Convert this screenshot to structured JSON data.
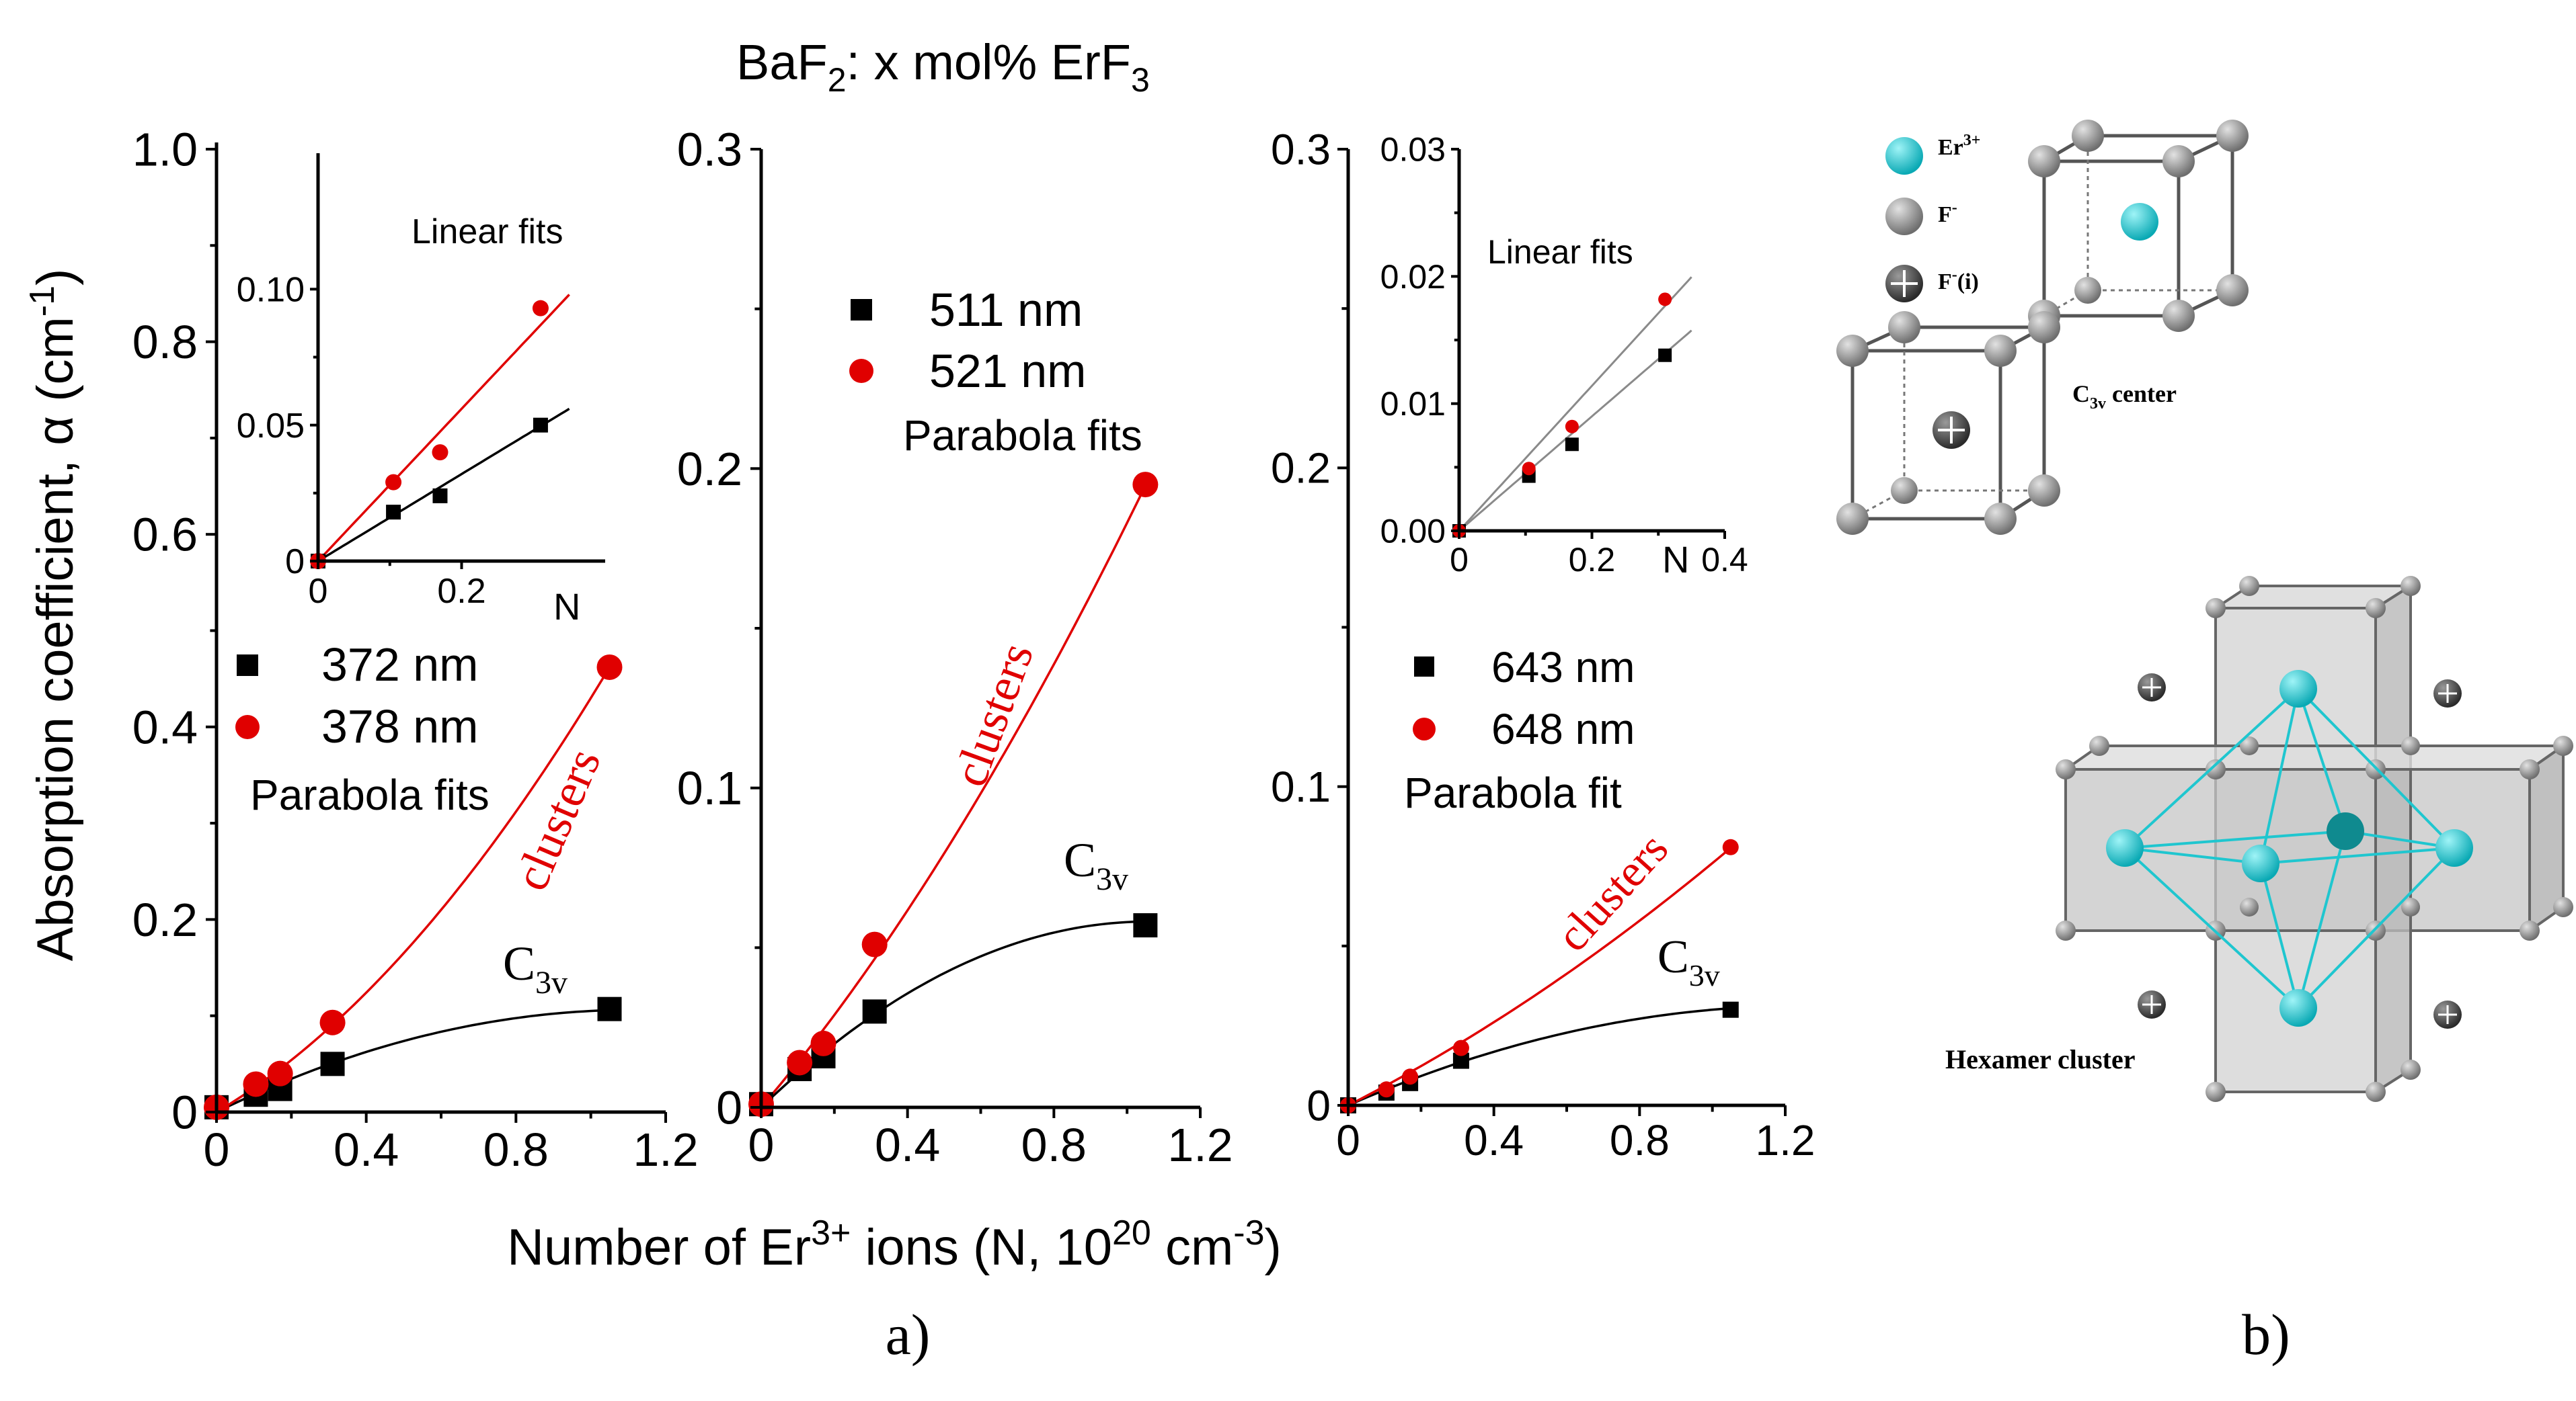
{
  "figure_title": {
    "main": "BaF",
    "sub1": "2",
    "mid": ": x mol% ErF",
    "sub2": "3"
  },
  "y_axis_label": {
    "main": "Absorption coefficient, α (cm",
    "sup": "-1",
    "end": ")"
  },
  "x_axis_label": {
    "p1": "Number of Er",
    "sup1": "3+",
    "p2": " ions (N, 10",
    "sup2": "20",
    "p3": " cm",
    "sup3": "-3",
    "p4": ")"
  },
  "panel_labels": {
    "a": "a)",
    "b": "b)"
  },
  "chart_data": [
    {
      "type": "scatter",
      "panel": "left",
      "xlim": [
        0,
        1.2
      ],
      "ylim": [
        0,
        1.0
      ],
      "x_ticks": [
        "0",
        "0.4",
        "0.8",
        "1.2"
      ],
      "y_ticks": [
        "0",
        "0.2",
        "0.4",
        "0.6",
        "0.8",
        "1.0"
      ],
      "series": [
        {
          "name": "372 nm",
          "color": "#000000",
          "marker": "square",
          "x": [
            0.0,
            0.105,
            0.17,
            0.31,
            1.05
          ],
          "y": [
            0.005,
            0.018,
            0.024,
            0.05,
            0.107
          ]
        },
        {
          "name": "378 nm",
          "color": "#e00000",
          "marker": "circle",
          "x": [
            0.0,
            0.105,
            0.17,
            0.31,
            1.05
          ],
          "y": [
            0.005,
            0.029,
            0.04,
            0.093,
            0.462
          ]
        }
      ],
      "fits": [
        {
          "series": "372 nm",
          "kind": "parabola",
          "coef": [
            0,
            0.19,
            -0.085
          ],
          "x_range": [
            0,
            1.05
          ]
        },
        {
          "series": "378 nm",
          "kind": "parabola",
          "coef": [
            0,
            0.23,
            0.2
          ],
          "x_range": [
            0,
            1.05
          ]
        }
      ],
      "legend_fit_label": "Parabola fits",
      "annotations": [
        {
          "text": "clusters",
          "color": "#e00000"
        },
        {
          "text": "C",
          "sub": "3v"
        }
      ],
      "inset": {
        "title": "Linear fits",
        "xlabel": "N",
        "xlim": [
          0,
          0.4
        ],
        "ylim": [
          0,
          0.15
        ],
        "x_ticks": [
          "0",
          "0.2"
        ],
        "y_ticks": [
          "0",
          "0.05",
          "0.10"
        ],
        "series": [
          {
            "name": "372 nm",
            "color": "#000000",
            "marker": "square",
            "x": [
              0.0,
              0.105,
              0.17,
              0.31
            ],
            "y": [
              0.0,
              0.018,
              0.024,
              0.05
            ]
          },
          {
            "name": "378 nm",
            "color": "#e00000",
            "marker": "circle",
            "x": [
              0.0,
              0.105,
              0.17,
              0.31
            ],
            "y": [
              0.0,
              0.029,
              0.04,
              0.093
            ]
          }
        ],
        "fits": [
          {
            "series": "372 nm",
            "kind": "linear",
            "slope": 0.16,
            "x_range": [
              0,
              0.35
            ]
          },
          {
            "series": "378 nm",
            "kind": "linear",
            "slope": 0.28,
            "x_range": [
              0,
              0.35
            ]
          }
        ]
      }
    },
    {
      "type": "scatter",
      "panel": "middle",
      "xlim": [
        0,
        1.2
      ],
      "ylim": [
        0,
        0.3
      ],
      "x_ticks": [
        "0",
        "0.4",
        "0.8",
        "1.2"
      ],
      "y_ticks": [
        "0",
        "0.1",
        "0.2",
        "0.3"
      ],
      "series": [
        {
          "name": "511 nm",
          "color": "#000000",
          "marker": "square",
          "x": [
            0.0,
            0.105,
            0.17,
            0.31,
            1.05
          ],
          "y": [
            0.001,
            0.012,
            0.016,
            0.03,
            0.057
          ]
        },
        {
          "name": "521 nm",
          "color": "#e00000",
          "marker": "circle",
          "x": [
            0.0,
            0.105,
            0.17,
            0.31,
            1.05
          ],
          "y": [
            0.001,
            0.014,
            0.02,
            0.051,
            0.195
          ]
        }
      ],
      "fits": [
        {
          "series": "511 nm",
          "kind": "parabola",
          "coef": [
            0,
            0.11,
            -0.052
          ],
          "x_range": [
            0,
            1.05
          ]
        },
        {
          "series": "521 nm",
          "kind": "parabola",
          "coef": [
            0,
            0.135,
            0.048
          ],
          "x_range": [
            0,
            1.05
          ]
        }
      ],
      "legend_fit_label": "Parabola fits",
      "annotations": [
        {
          "text": "clusters",
          "color": "#e00000"
        },
        {
          "text": "C",
          "sub": "3v"
        }
      ]
    },
    {
      "type": "scatter",
      "panel": "right",
      "xlim": [
        0,
        1.2
      ],
      "ylim": [
        0,
        0.3
      ],
      "x_ticks": [
        "0",
        "0.4",
        "0.8",
        "1.2"
      ],
      "y_ticks": [
        "0",
        "0.1",
        "0.2",
        "0.3"
      ],
      "series": [
        {
          "name": "643 nm",
          "color": "#000000",
          "marker": "square",
          "x": [
            0.0,
            0.105,
            0.17,
            0.31,
            1.05
          ],
          "y": [
            0.0,
            0.004,
            0.007,
            0.014,
            0.03
          ]
        },
        {
          "name": "648 nm",
          "color": "#e00000",
          "marker": "circle",
          "x": [
            0.0,
            0.105,
            0.17,
            0.31,
            1.05
          ],
          "y": [
            0.0,
            0.005,
            0.009,
            0.018,
            0.081
          ]
        }
      ],
      "fits": [
        {
          "series": "643 nm",
          "kind": "parabola",
          "coef": [
            0,
            0.05,
            -0.02
          ],
          "x_range": [
            0,
            1.05
          ]
        },
        {
          "series": "648 nm",
          "kind": "parabola",
          "coef": [
            0,
            0.058,
            0.018
          ],
          "x_range": [
            0,
            1.05
          ]
        }
      ],
      "legend_fit_label": "Parabola fit",
      "annotations": [
        {
          "text": "clusters",
          "color": "#e00000"
        },
        {
          "text": "C",
          "sub": "3v"
        }
      ],
      "inset": {
        "title": "Linear fits",
        "xlabel": "N",
        "xlim": [
          0,
          0.4
        ],
        "ylim": [
          0,
          0.03
        ],
        "x_ticks": [
          "0",
          "0.2",
          "0.4"
        ],
        "y_ticks": [
          "0.00",
          "0.01",
          "0.02",
          "0.03"
        ],
        "series": [
          {
            "name": "643 nm",
            "color": "#000000",
            "marker": "square",
            "x": [
              0.0,
              0.105,
              0.17,
              0.31
            ],
            "y": [
              0.0,
              0.0043,
              0.0068,
              0.0138
            ]
          },
          {
            "name": "648 nm",
            "color": "#e00000",
            "marker": "circle",
            "x": [
              0.0,
              0.105,
              0.17,
              0.31
            ],
            "y": [
              0.0,
              0.0049,
              0.0082,
              0.0182
            ]
          }
        ],
        "fits": [
          {
            "series": "643 nm",
            "kind": "linear",
            "slope": 0.045,
            "x_range": [
              0,
              0.35
            ]
          },
          {
            "series": "648 nm",
            "kind": "linear",
            "slope": 0.057,
            "x_range": [
              0,
              0.35
            ]
          }
        ]
      }
    }
  ],
  "structure": {
    "legend": {
      "er": {
        "main": "Er",
        "sup": "3+"
      },
      "f": {
        "main": "F",
        "sup": "-"
      },
      "fi": {
        "main": "F",
        "sup": "-",
        "end": "(i)"
      }
    },
    "c3v_label": {
      "main": "C",
      "sub": "3v",
      "end": " center"
    },
    "hexamer_label": "Hexamer cluster",
    "colors": {
      "er": "#19c7d2",
      "f": "#8c8c8c",
      "fi": "#3a3a3a"
    }
  }
}
